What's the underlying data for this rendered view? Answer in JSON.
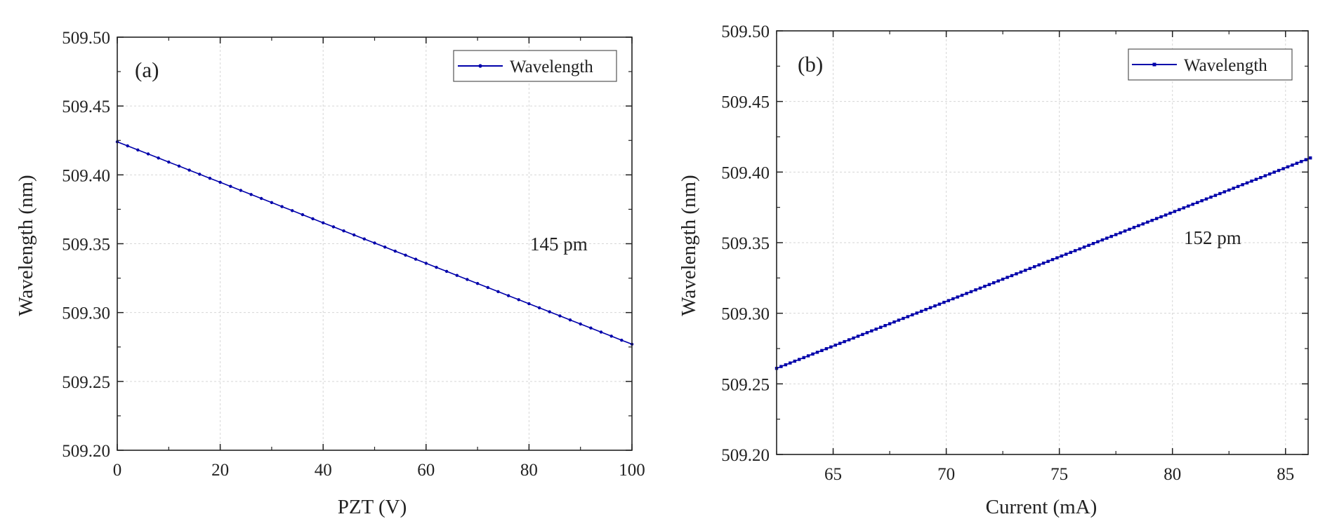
{
  "colors": {
    "series": "#0000aa",
    "axis": "#222222",
    "grid": "#d6d6d6",
    "background": "#ffffff"
  },
  "chart_data": [
    {
      "type": "line",
      "panel_label": "(a)",
      "xlabel": "PZT (V)",
      "ylabel": "Wavelength (nm)",
      "xlim": [
        0,
        100
      ],
      "ylim": [
        509.2,
        509.5
      ],
      "xticks": [
        "0",
        "20",
        "40",
        "60",
        "80",
        "100"
      ],
      "yticks": [
        "509.20",
        "509.25",
        "509.30",
        "509.35",
        "509.40",
        "509.45",
        "509.50"
      ],
      "grid": true,
      "legend": {
        "position": "top-right",
        "entries": [
          "Wavelength"
        ]
      },
      "annotation": "145 pm",
      "series": [
        {
          "name": "Wavelength",
          "x_start": 0,
          "x_end": 100,
          "x_step": 2,
          "y_start": 509.424,
          "y_end": 509.277
        }
      ]
    },
    {
      "type": "line",
      "panel_label": "(b)",
      "xlabel": "Current (mA)",
      "ylabel": "Wavelength (nm)",
      "xlim": [
        62.5,
        86
      ],
      "ylim": [
        509.2,
        509.5
      ],
      "xticks": [
        "65",
        "70",
        "75",
        "80",
        "85"
      ],
      "yticks": [
        "509.20",
        "509.25",
        "509.30",
        "509.35",
        "509.40",
        "509.45",
        "509.50"
      ],
      "grid": true,
      "legend": {
        "position": "top-right",
        "entries": [
          "Wavelength"
        ]
      },
      "annotation": "152 pm",
      "series": [
        {
          "name": "Wavelength",
          "x_start": 62.5,
          "x_end": 86,
          "x_step": 0.2,
          "y_start": 509.261,
          "y_end": 509.41
        }
      ]
    }
  ]
}
